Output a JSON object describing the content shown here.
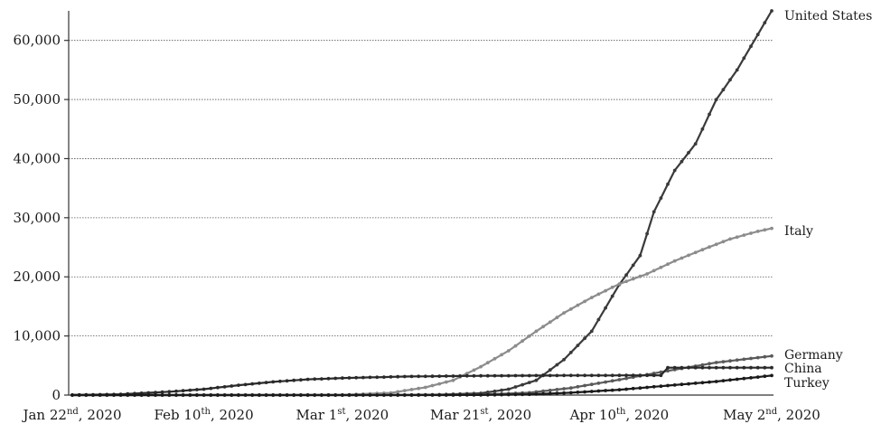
{
  "chart_data": {
    "type": "line",
    "title": "",
    "xlabel": "",
    "ylabel": "",
    "ylim": [
      0,
      65000
    ],
    "grid": true,
    "legend": "series labels at line ends (right)",
    "y_ticks": [
      {
        "value": 0,
        "label": "0"
      },
      {
        "value": 10000,
        "label": "10,000"
      },
      {
        "value": 20000,
        "label": "20,000"
      },
      {
        "value": 30000,
        "label": "30,000"
      },
      {
        "value": 40000,
        "label": "40,000"
      },
      {
        "value": 50000,
        "label": "50,000"
      },
      {
        "value": 60000,
        "label": "60,000"
      }
    ],
    "x_ticks": [
      {
        "date": "2020-01-22",
        "label": "Jan 22",
        "sup": "nd",
        "year": ", 2020"
      },
      {
        "date": "2020-02-10",
        "label": "Feb 10",
        "sup": "th",
        "year": ", 2020"
      },
      {
        "date": "2020-03-01",
        "label": "Mar 1",
        "sup": "st",
        "year": ", 2020"
      },
      {
        "date": "2020-03-21",
        "label": "Mar 21",
        "sup": "st",
        "year": ", 2020"
      },
      {
        "date": "2020-04-10",
        "label": "Apr 10",
        "sup": "th",
        "year": ", 2020"
      },
      {
        "date": "2020-05-02",
        "label": "May 2",
        "sup": "nd",
        "year": ", 2020"
      }
    ],
    "series": [
      {
        "name": "United States",
        "color": "#3a3a3a",
        "points": [
          [
            "2020-01-22",
            0
          ],
          [
            "2020-02-10",
            0
          ],
          [
            "2020-03-01",
            1
          ],
          [
            "2020-03-10",
            30
          ],
          [
            "2020-03-15",
            70
          ],
          [
            "2020-03-21",
            300
          ],
          [
            "2020-03-25",
            1000
          ],
          [
            "2020-03-29",
            2500
          ],
          [
            "2020-04-02",
            6000
          ],
          [
            "2020-04-06",
            10800
          ],
          [
            "2020-04-10",
            18700
          ],
          [
            "2020-04-13",
            23600
          ],
          [
            "2020-04-15",
            31000
          ],
          [
            "2020-04-18",
            38000
          ],
          [
            "2020-04-21",
            42500
          ],
          [
            "2020-04-24",
            50000
          ],
          [
            "2020-04-27",
            55000
          ],
          [
            "2020-04-30",
            61000
          ],
          [
            "2020-05-02",
            65000
          ]
        ]
      },
      {
        "name": "Italy",
        "color": "#8c8c8c",
        "points": [
          [
            "2020-01-22",
            0
          ],
          [
            "2020-02-20",
            0
          ],
          [
            "2020-03-01",
            30
          ],
          [
            "2020-03-08",
            370
          ],
          [
            "2020-03-13",
            1300
          ],
          [
            "2020-03-17",
            2500
          ],
          [
            "2020-03-21",
            4800
          ],
          [
            "2020-03-25",
            7500
          ],
          [
            "2020-03-29",
            10800
          ],
          [
            "2020-04-02",
            13900
          ],
          [
            "2020-04-06",
            16500
          ],
          [
            "2020-04-10",
            18800
          ],
          [
            "2020-04-14",
            20500
          ],
          [
            "2020-04-18",
            22700
          ],
          [
            "2020-04-22",
            24600
          ],
          [
            "2020-04-26",
            26400
          ],
          [
            "2020-04-30",
            27700
          ],
          [
            "2020-05-02",
            28200
          ]
        ]
      },
      {
        "name": "Germany",
        "color": "#5a5a5a",
        "points": [
          [
            "2020-01-22",
            0
          ],
          [
            "2020-03-10",
            0
          ],
          [
            "2020-03-21",
            80
          ],
          [
            "2020-03-28",
            400
          ],
          [
            "2020-04-03",
            1200
          ],
          [
            "2020-04-10",
            2600
          ],
          [
            "2020-04-17",
            4100
          ],
          [
            "2020-04-24",
            5500
          ],
          [
            "2020-05-02",
            6600
          ]
        ]
      },
      {
        "name": "China",
        "color": "#2a2a2a",
        "points": [
          [
            "2020-01-22",
            17
          ],
          [
            "2020-01-29",
            130
          ],
          [
            "2020-02-05",
            560
          ],
          [
            "2020-02-10",
            1000
          ],
          [
            "2020-02-15",
            1660
          ],
          [
            "2020-02-20",
            2240
          ],
          [
            "2020-02-25",
            2660
          ],
          [
            "2020-03-01",
            2870
          ],
          [
            "2020-03-10",
            3140
          ],
          [
            "2020-03-21",
            3260
          ],
          [
            "2020-04-01",
            3310
          ],
          [
            "2020-04-16",
            3340
          ],
          [
            "2020-04-17",
            4630
          ],
          [
            "2020-05-02",
            4630
          ]
        ]
      },
      {
        "name": "Turkey",
        "color": "#1a1a1a",
        "points": [
          [
            "2020-01-22",
            0
          ],
          [
            "2020-03-15",
            0
          ],
          [
            "2020-03-21",
            20
          ],
          [
            "2020-03-28",
            120
          ],
          [
            "2020-04-03",
            400
          ],
          [
            "2020-04-10",
            900
          ],
          [
            "2020-04-17",
            1600
          ],
          [
            "2020-04-24",
            2300
          ],
          [
            "2020-05-02",
            3300
          ]
        ]
      }
    ]
  }
}
